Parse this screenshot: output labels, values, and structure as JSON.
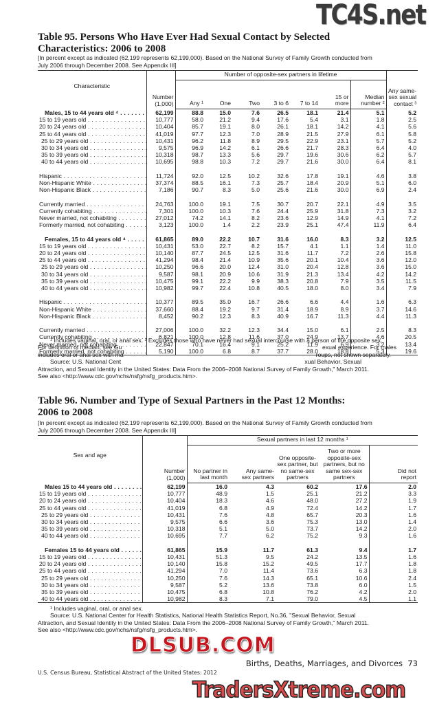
{
  "table95": {
    "title_line1": "Table 95. Persons Who Have Ever Had Sexual Contact by Selected",
    "title_line2": "Characteristics: 2006 to 2008",
    "note_line1": "[In percent except as indicated (62,199 represents 62,199,000). Based on the National Survey of Family Growth conducted from",
    "note_line2": "July 2006 through December 2008. See Appendix III]",
    "headers": {
      "characteristic": "Characteristic",
      "number": "Number (1,000)",
      "group": "Number of opposite-sex partners in lifetime",
      "any": "Any ¹",
      "one": "One",
      "two": "Two",
      "three_to_six": "3 to 6",
      "seven_to_fourteen": "7 to 14",
      "fifteen_plus": "15 or more",
      "median": "Median number ²",
      "same_sex": "Any same-sex sexual contact ³"
    },
    "groups": [
      [
        {
          "label": "Males, 15 to 44 years old ⁴",
          "type": "total",
          "values": [
            "62,199",
            "88.8",
            "15.0",
            "7.6",
            "26.5",
            "18.1",
            "21.4",
            "5.1",
            "5.2"
          ]
        },
        {
          "label": "15 to 19 years old",
          "values": [
            "10,777",
            "58.0",
            "21.2",
            "9.4",
            "17.6",
            "5.4",
            "3.1",
            "1.8",
            "2.5"
          ]
        },
        {
          "label": "20 to 24 years old",
          "values": [
            "10,404",
            "85.7",
            "19.1",
            "8.0",
            "26.1",
            "18.1",
            "14.2",
            "4.1",
            "5.6"
          ]
        },
        {
          "label": "25 to 44 years old",
          "values": [
            "41,019",
            "97.7",
            "12.3",
            "7.0",
            "28.9",
            "21.5",
            "27.9",
            "6.1",
            "5.8"
          ]
        },
        {
          "label": "25 to 29 years old",
          "type": "sub",
          "values": [
            "10,431",
            "96.2",
            "11.8",
            "8.9",
            "29.5",
            "22.9",
            "23.1",
            "5.7",
            "5.2"
          ]
        },
        {
          "label": "30 to 34 years old",
          "type": "sub",
          "values": [
            "9,575",
            "96.9",
            "14.2",
            "6.1",
            "26.6",
            "21.7",
            "28.3",
            "6.4",
            "4.0"
          ]
        },
        {
          "label": "35 to 39 years old",
          "type": "sub",
          "values": [
            "10,318",
            "98.7",
            "13.3",
            "5.6",
            "29.7",
            "19.6",
            "30.6",
            "6.2",
            "5.7"
          ]
        },
        {
          "label": "40 to 44 years old",
          "type": "sub",
          "values": [
            "10,695",
            "98.8",
            "10.3",
            "7.2",
            "29.7",
            "21.6",
            "30.0",
            "6.4",
            "8.1"
          ]
        }
      ],
      [
        {
          "label": "Hispanic",
          "values": [
            "11,724",
            "92.0",
            "12.5",
            "10.2",
            "32.6",
            "17.8",
            "19.1",
            "4.6",
            "3.8"
          ]
        },
        {
          "label": "Non-Hispanic White",
          "values": [
            "37,374",
            "88.5",
            "16.1",
            "7.3",
            "25.7",
            "18.4",
            "20.9",
            "5.1",
            "6.0"
          ]
        },
        {
          "label": "Non-Hispanic Black",
          "values": [
            "7,186",
            "90.7",
            "8.3",
            "5.0",
            "25.6",
            "21.6",
            "30.0",
            "6.9",
            "2.4"
          ]
        }
      ],
      [
        {
          "label": "Currently married",
          "values": [
            "24,763",
            "100.0",
            "19.1",
            "7.5",
            "30.7",
            "20.7",
            "22.1",
            "4.9",
            "3.5"
          ]
        },
        {
          "label": "Currently cohabiting",
          "values": [
            "7,301",
            "100.0",
            "10.3",
            "7.6",
            "24.4",
            "25.9",
            "31.8",
            "7.3",
            "3.2"
          ]
        },
        {
          "label": "Never married, not cohabiting",
          "values": [
            "27,012",
            "74.2",
            "14.1",
            "8.2",
            "23.6",
            "12.9",
            "14.9",
            "4.1",
            "7.2"
          ]
        },
        {
          "label": "Formerly married, not cohabiting",
          "values": [
            "3,123",
            "100.0",
            "1.4",
            "2.2",
            "23.9",
            "25.1",
            "47.4",
            "11.9",
            "6.4"
          ]
        }
      ],
      [
        {
          "label": "Females, 15 to 44 years old ⁴",
          "type": "total",
          "values": [
            "61,865",
            "89.0",
            "22.2",
            "10.7",
            "31.6",
            "16.0",
            "8.3",
            "3.2",
            "12.5"
          ]
        },
        {
          "label": "15 to 19 years old",
          "values": [
            "10,431",
            "53.0",
            "22.7",
            "8.2",
            "15.7",
            "4.1",
            "1.1",
            "1.4",
            "11.0"
          ]
        },
        {
          "label": "20 to 24 years old",
          "values": [
            "10,140",
            "87.7",
            "24.5",
            "12.5",
            "31.6",
            "11.7",
            "7.2",
            "2.6",
            "15.8"
          ]
        },
        {
          "label": "25 to 44 years old",
          "values": [
            "41,294",
            "98.4",
            "21.4",
            "10.9",
            "35.6",
            "20.1",
            "10.4",
            "3.6",
            "12.0"
          ]
        },
        {
          "label": "25 to 29 years old",
          "type": "sub",
          "values": [
            "10,250",
            "96.6",
            "20.0",
            "12.4",
            "31.0",
            "20.4",
            "12.8",
            "3.6",
            "15.0"
          ]
        },
        {
          "label": "30 to 34 years old",
          "type": "sub",
          "values": [
            "9,587",
            "98.1",
            "20.9",
            "10.6",
            "31.9",
            "21.3",
            "13.4",
            "4.2",
            "14.2"
          ]
        },
        {
          "label": "35 to 39 years old",
          "type": "sub",
          "values": [
            "10,475",
            "99.1",
            "22.2",
            "9.9",
            "38.3",
            "20.8",
            "7.9",
            "3.5",
            "11.5"
          ]
        },
        {
          "label": "40 to 44 years old",
          "type": "sub",
          "values": [
            "10,982",
            "99.7",
            "22.4",
            "10.8",
            "40.5",
            "18.0",
            "8.0",
            "3.4",
            "7.9"
          ]
        }
      ],
      [
        {
          "label": "Hispanic",
          "values": [
            "10,377",
            "89.5",
            "35.0",
            "16.7",
            "26.6",
            "6.6",
            "4.4",
            "1.6",
            "6.3"
          ]
        },
        {
          "label": "Non-Hispanic White",
          "values": [
            "37,660",
            "88.4",
            "19.2",
            "9.7",
            "31.4",
            "18.9",
            "8.9",
            "3.7",
            "14.6"
          ]
        },
        {
          "label": "Non-Hispanic Black",
          "values": [
            "8,452",
            "90.2",
            "12.3",
            "8.3",
            "40.9",
            "16.7",
            "11.3",
            "4.4",
            "11.3"
          ]
        }
      ],
      [
        {
          "label": "Currently married",
          "values": [
            "27,006",
            "100.0",
            "32.2",
            "12.3",
            "34.4",
            "15.0",
            "6.1",
            "2.5",
            "8.3"
          ]
        },
        {
          "label": "Currently cohabiting",
          "values": [
            "6,821",
            "100.0",
            "12.8",
            "11.6",
            "37.0",
            "24.9",
            "13.7",
            "4.6",
            "20.5"
          ]
        },
        {
          "label": "Never married, not cohabiting",
          "values": [
            "22,847",
            "70.1",
            "16.4",
            "9.1",
            "25.2",
            "11.9",
            "6.9",
            "3.2",
            "13.4"
          ]
        },
        {
          "label": "Formerly married, not cohabiting",
          "values": [
            "5,190",
            "100.0",
            "6.8",
            "8.7",
            "37.7",
            "28.0",
            "18.8",
            "5.3",
            "19.6"
          ]
        }
      ]
    ],
    "footnotes": {
      "line1": "¹ Includes vaginal, oral, or anal sex. ² Excludes those who have never had sexual intercourse with a person of the opposite sex.",
      "line2_left": "For definition of median, see Gu",
      "line2_right": "exual experience. For males",
      "line3_left": "includes oral or anal sex with ma",
      "line3_right": "roups, not shown separately.",
      "line4_left": "Source: U.S. National Cent",
      "line4_right": "xual Behavior, Sexual",
      "line5": "Attraction, and Sexual Identity in the United States: Data From the 2006–2008 National Survey of Family Growth,\" March 2011.",
      "line6": "See also <http://www.cdc.gov/nchs/nsfg/nsfg_products.htm>."
    }
  },
  "table96": {
    "title_line1": "Table 96. Number and Type of Sexual Partners in the Past 12 Months:",
    "title_line2": "2006 to 2008",
    "note_line1": "[In percent except as indicated (62,199 represents 62,199,000). Based on the National Survey of Family Growth conducted from",
    "note_line2": "July 2006 through December 2008. See Appendix III]",
    "headers": {
      "sex_age": "Sex and age",
      "number": "Number (1,000)",
      "group": "Sexual partners in last 12 months ¹",
      "no_partner": "No partner in last month",
      "any_same": "Any same-sex partners",
      "one_opposite": "One opposite-sex partner, but no same-sex partners",
      "two_plus": "Two or more opposite-sex partners, but no same sex-sex partners",
      "did_not_report": "Did not report"
    },
    "groups": [
      [
        {
          "label": "Males 15 to 44 years old",
          "type": "total",
          "values": [
            "62,199",
            "16.0",
            "4.3",
            "60.2",
            "17.6",
            "2.0"
          ]
        },
        {
          "label": "15 to 19 years old",
          "values": [
            "10,777",
            "48.9",
            "1.5",
            "25.1",
            "21.2",
            "3.3"
          ]
        },
        {
          "label": "20 to 24 years old",
          "values": [
            "10,404",
            "18.3",
            "4.6",
            "48.0",
            "27.2",
            "1.9"
          ]
        },
        {
          "label": "25 to 44 years old",
          "values": [
            "41,019",
            "6.8",
            "4.9",
            "72.4",
            "14.2",
            "1.7"
          ]
        },
        {
          "label": "25 to 29 years old",
          "type": "sub",
          "values": [
            "10,431",
            "7.6",
            "4.8",
            "65.7",
            "20.3",
            "1.6"
          ]
        },
        {
          "label": "30 to 34 years old",
          "type": "sub",
          "values": [
            "9,575",
            "6.6",
            "3.6",
            "75.3",
            "13.0",
            "1.4"
          ]
        },
        {
          "label": "35 to 39 years old",
          "type": "sub",
          "values": [
            "10,318",
            "5.1",
            "5.0",
            "73.7",
            "14.2",
            "2.0"
          ]
        },
        {
          "label": "40 to 44 years old",
          "type": "sub",
          "values": [
            "10,695",
            "7.7",
            "6.2",
            "75.2",
            "9.3",
            "1.6"
          ]
        }
      ],
      [
        {
          "label": "Females 15 to 44 years old",
          "type": "total",
          "values": [
            "61,865",
            "15.9",
            "11.7",
            "61.3",
            "9.4",
            "1.7"
          ]
        },
        {
          "label": "15 to 19 years old",
          "values": [
            "10,431",
            "51.3",
            "9.5",
            "24.2",
            "13.5",
            "1.6"
          ]
        },
        {
          "label": "20 to 24 years old",
          "values": [
            "10,140",
            "15.8",
            "15.2",
            "49.5",
            "17.7",
            "1.8"
          ]
        },
        {
          "label": "25 to 44 years old",
          "values": [
            "41,294",
            "7.0",
            "11.4",
            "73.6",
            "6.3",
            "1.8"
          ]
        },
        {
          "label": "25 to 29 years old",
          "type": "sub",
          "values": [
            "10,250",
            "7.6",
            "14.3",
            "65.1",
            "10.6",
            "2.4"
          ]
        },
        {
          "label": "30 to 34 years old",
          "type": "sub",
          "values": [
            "9,587",
            "5.2",
            "13.6",
            "73.8",
            "6.0",
            "1.5"
          ]
        },
        {
          "label": "35 to 39 years old",
          "type": "sub",
          "values": [
            "10,475",
            "6.8",
            "10.8",
            "76.2",
            "4.2",
            "2.0"
          ]
        },
        {
          "label": "40 to 44 years old",
          "type": "sub",
          "values": [
            "10,982",
            "8.3",
            "7.1",
            "79.0",
            "4.5",
            "1.1"
          ]
        }
      ]
    ],
    "footnotes": {
      "line1": "¹ Includes vaginal, oral, or anal sex.",
      "line2": "Source: U.S. National Center for Health Statistics, National Health Statistics Report, No.36, \"Sexual Behavior, Sexual",
      "line3": "Attraction, and Sexual Identity in the United States: Data From the 2006–2008 National Survey of Family Growth,\" March 2011.",
      "line4": "See also <http://www.cdc.gov/nchs/nsfg/nsfg_products.htm>."
    }
  },
  "page_footer": {
    "section": "Births, Deaths, Marriages, and Divorces",
    "page_number": "73",
    "publication": "U.S. Census Bureau, Statistical Abstract of the United States: 2012"
  },
  "watermarks": {
    "top": "TC4S.net",
    "middle": "DLSUB.COM",
    "bottom": "TradersXtreme.com",
    "colors": {
      "top": "#3a3a3a",
      "middle": "#c8141c",
      "bottom": "#d94a4a"
    }
  }
}
